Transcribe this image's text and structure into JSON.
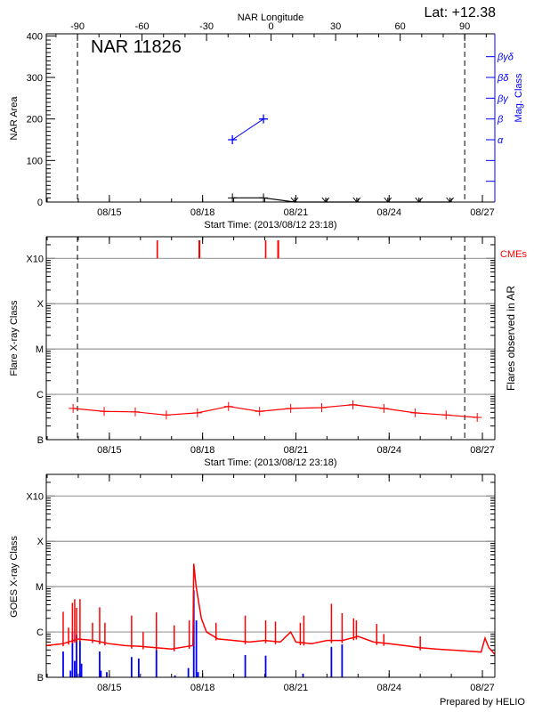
{
  "colors": {
    "area": "#000000",
    "mag_class": "#0000ff",
    "flares": "#ff0000",
    "cmes": "#ff0000",
    "goes_long": "#ff0000",
    "goes_short": "#0000ff",
    "grid": "#999999"
  },
  "footer": "Prepared by HELIO",
  "chart_data": [
    {
      "type": "line",
      "title": "NAR 11826",
      "top_axis_label": "NAR Longitude",
      "latitude_label": "Lat: +12.38",
      "xlabel": "Start Time: (2013/08/12 23:18)",
      "ylabel": "NAR Area",
      "y2label": "Mag. Class",
      "xlim": [
        "2013-08-12 23:18",
        "2013-08-27 09:36"
      ],
      "x_ticks": [
        {
          "label": "08/15",
          "t": "2013-08-15 00:00"
        },
        {
          "label": "08/18",
          "t": "2013-08-18 00:00"
        },
        {
          "label": "08/21",
          "t": "2013-08-21 00:00"
        },
        {
          "label": "08/24",
          "t": "2013-08-24 00:00"
        },
        {
          "label": "08/27",
          "t": "2013-08-27 00:00"
        }
      ],
      "ylim": [
        0,
        405
      ],
      "y_ticks": [
        0,
        100,
        200,
        300,
        400
      ],
      "longitude_ticks": [
        -90,
        -60,
        -30,
        0,
        30,
        60,
        90
      ],
      "longitude_range": [
        -104.5,
        104
      ],
      "limb_longitudes": [
        -90,
        90
      ],
      "mag_class_ticks": [
        "",
        "",
        "α",
        "β",
        "βγ",
        "βδ",
        "βγδ"
      ],
      "area_series": [
        {
          "t": "2013-08-18 23:00",
          "v": 10
        },
        {
          "t": "2013-08-19 23:00",
          "v": 10
        },
        {
          "t": "2013-08-20 23:00",
          "v": 0
        },
        {
          "t": "2013-08-21 23:00",
          "v": 0
        },
        {
          "t": "2013-08-22 23:00",
          "v": 0
        },
        {
          "t": "2013-08-23 23:00",
          "v": 0
        },
        {
          "t": "2013-08-24 23:00",
          "v": 0
        },
        {
          "t": "2013-08-25 23:00",
          "v": 0
        }
      ],
      "mag_class_series": [
        {
          "t": "2013-08-18 23:00",
          "class": "α"
        },
        {
          "t": "2013-08-19 23:00",
          "class": "β"
        }
      ]
    },
    {
      "type": "line",
      "xlabel": "Start Time: (2013/08/12 23:18)",
      "ylabel": "Flare X-ray Class",
      "y2label": "Flares observed in AR",
      "cme_label": "CMEs",
      "xlim": [
        "2013-08-12 23:18",
        "2013-08-27 09:36"
      ],
      "y_scale": "log",
      "ylim": [
        1e-07,
        0.003
      ],
      "y_ticks": [
        {
          "label": "B",
          "v": 1e-07
        },
        {
          "label": "C",
          "v": 1e-06
        },
        {
          "label": "M",
          "v": 1e-05
        },
        {
          "label": "X",
          "v": 0.0001
        },
        {
          "label": "X10",
          "v": 0.001
        }
      ],
      "grid": true,
      "limb_longitudes": [
        -90,
        90
      ],
      "flare_series": [
        {
          "t": "2013-08-13 20:00",
          "v": 4.9e-07
        },
        {
          "t": "2013-08-14 20:00",
          "v": 4.2e-07
        },
        {
          "t": "2013-08-15 20:00",
          "v": 4.1e-07
        },
        {
          "t": "2013-08-16 20:00",
          "v": 3.5e-07
        },
        {
          "t": "2013-08-17 20:00",
          "v": 3.9e-07
        },
        {
          "t": "2013-08-18 20:00",
          "v": 5.4e-07
        },
        {
          "t": "2013-08-19 20:00",
          "v": 4.2e-07
        },
        {
          "t": "2013-08-20 20:00",
          "v": 4.9e-07
        },
        {
          "t": "2013-08-21 20:00",
          "v": 5.1e-07
        },
        {
          "t": "2013-08-22 20:00",
          "v": 5.9e-07
        },
        {
          "t": "2013-08-23 20:00",
          "v": 4.9e-07
        },
        {
          "t": "2013-08-24 20:00",
          "v": 3.9e-07
        },
        {
          "t": "2013-08-25 20:00",
          "v": 3.5e-07
        },
        {
          "t": "2013-08-26 20:00",
          "v": 3.1e-07
        }
      ],
      "cmes": [
        "2013-08-16 13:00",
        "2013-08-17 21:20",
        "2013-08-17 21:40",
        "2013-08-20 00:40",
        "2013-08-20 10:10",
        "2013-08-20 10:30"
      ]
    },
    {
      "type": "line",
      "ylabel": "GOES X-ray Class",
      "xlim": [
        "2013-08-12 23:18",
        "2013-08-27 09:36"
      ],
      "y_scale": "log",
      "ylim": [
        1e-07,
        0.003
      ],
      "y_ticks": [
        {
          "label": "B",
          "v": 1e-07
        },
        {
          "label": "C",
          "v": 1e-06
        },
        {
          "label": "M",
          "v": 1e-05
        },
        {
          "label": "X",
          "v": 0.0001
        },
        {
          "label": "X10",
          "v": 0.001
        }
      ],
      "grid": true,
      "goes_long_baseline": [
        [
          "2013-08-12 23:18",
          5e-07
        ],
        [
          "2013-08-13 12:00",
          5.5e-07
        ],
        [
          "2013-08-14 00:00",
          7e-07
        ],
        [
          "2013-08-14 12:00",
          6.5e-07
        ],
        [
          "2013-08-15 00:00",
          5.5e-07
        ],
        [
          "2013-08-15 12:00",
          5e-07
        ],
        [
          "2013-08-16 00:00",
          4.8e-07
        ],
        [
          "2013-08-16 12:00",
          4.5e-07
        ],
        [
          "2013-08-17 00:00",
          4.2e-07
        ],
        [
          "2013-08-17 12:00",
          4.8e-07
        ],
        [
          "2013-08-17 16:30",
          5e-07
        ],
        [
          "2013-08-17 17:10",
          3.2e-05
        ],
        [
          "2013-08-17 19:00",
          1e-05
        ],
        [
          "2013-08-17 23:00",
          2e-06
        ],
        [
          "2013-08-18 03:00",
          1e-06
        ],
        [
          "2013-08-18 12:00",
          7e-07
        ],
        [
          "2013-08-19 00:00",
          6.5e-07
        ],
        [
          "2013-08-19 12:00",
          6e-07
        ],
        [
          "2013-08-20 00:00",
          6.5e-07
        ],
        [
          "2013-08-20 12:00",
          6e-07
        ],
        [
          "2013-08-20 20:00",
          1e-06
        ],
        [
          "2013-08-21 00:00",
          6e-07
        ],
        [
          "2013-08-21 12:00",
          5.5e-07
        ],
        [
          "2013-08-22 00:00",
          6.5e-07
        ],
        [
          "2013-08-22 12:00",
          6.5e-07
        ],
        [
          "2013-08-23 00:00",
          8e-07
        ],
        [
          "2013-08-23 12:00",
          6e-07
        ],
        [
          "2013-08-24 00:00",
          5.5e-07
        ],
        [
          "2013-08-24 12:00",
          5e-07
        ],
        [
          "2013-08-25 00:00",
          4.5e-07
        ],
        [
          "2013-08-25 12:00",
          4.2e-07
        ],
        [
          "2013-08-26 00:00",
          4e-07
        ],
        [
          "2013-08-26 12:00",
          3.8e-07
        ],
        [
          "2013-08-26 23:00",
          3.6e-07
        ],
        [
          "2013-08-27 02:00",
          7.3e-07
        ],
        [
          "2013-08-27 05:00",
          4.5e-07
        ],
        [
          "2013-08-27 09:36",
          3.2e-07
        ]
      ],
      "goes_long_spikes": [
        [
          "2013-08-13 12:20",
          2.8e-06
        ],
        [
          "2013-08-13 16:30",
          1.25e-06
        ],
        [
          "2013-08-13 19:30",
          4.4e-06
        ],
        [
          "2013-08-13 21:15",
          5.3e-06
        ],
        [
          "2013-08-13 22:40",
          3.4e-06
        ],
        [
          "2013-08-14 01:20",
          5.3e-06
        ],
        [
          "2013-08-14 11:00",
          1.6e-06
        ],
        [
          "2013-08-14 16:30",
          3.5e-06
        ],
        [
          "2013-08-14 20:35",
          1.6e-06
        ],
        [
          "2013-08-15 17:10",
          2.3e-06
        ],
        [
          "2013-08-16 02:05",
          1e-06
        ],
        [
          "2013-08-16 12:20",
          2.7e-06
        ],
        [
          "2013-08-17 02:05",
          1.4e-06
        ],
        [
          "2013-08-17 13:40",
          1.8e-06
        ],
        [
          "2013-08-18 10:20",
          1.6e-06
        ],
        [
          "2013-08-19 08:55",
          2.3e-06
        ],
        [
          "2013-08-20 00:40",
          1.8e-06
        ],
        [
          "2013-08-20 08:15",
          1.7e-06
        ],
        [
          "2013-08-21 03:25",
          1.6e-06
        ],
        [
          "2013-08-21 06:10",
          2.3e-06
        ],
        [
          "2013-08-22 03:25",
          4.2e-06
        ],
        [
          "2013-08-22 11:40",
          2.6e-06
        ],
        [
          "2013-08-22 20:35",
          2e-06
        ],
        [
          "2013-08-22 22:40",
          1.8e-06
        ],
        [
          "2013-08-23 14:25",
          1.5e-06
        ],
        [
          "2013-08-23 19:55",
          9e-07
        ],
        [
          "2013-08-25 00:00",
          8e-07
        ]
      ],
      "goes_short_spikes": [
        [
          "2013-08-13 12:20",
          3.7e-07
        ],
        [
          "2013-08-13 18:00",
          1.4e-07
        ],
        [
          "2013-08-13 19:30",
          1e-06
        ],
        [
          "2013-08-13 21:15",
          2.3e-07
        ],
        [
          "2013-08-13 22:40",
          8.7e-07
        ],
        [
          "2013-08-14 01:20",
          6.4e-07
        ],
        [
          "2013-08-14 02:30",
          2e-07
        ],
        [
          "2013-08-14 16:30",
          3.7e-07
        ],
        [
          "2013-08-14 17:30",
          1.4e-07
        ],
        [
          "2013-08-14 22:00",
          1.3e-07
        ],
        [
          "2013-08-15 17:10",
          2.8e-07
        ],
        [
          "2013-08-15 22:40",
          2.6e-07
        ],
        [
          "2013-08-16 12:20",
          4e-07
        ],
        [
          "2013-08-17 02:40",
          1.1e-07
        ],
        [
          "2013-08-17 13:00",
          1.6e-07
        ],
        [
          "2013-08-17 17:10",
          8.3e-06
        ],
        [
          "2013-08-17 19:10",
          1.8e-06
        ],
        [
          "2013-08-17 20:30",
          1.3e-07
        ],
        [
          "2013-08-19 08:55",
          3.1e-07
        ],
        [
          "2013-08-20 00:40",
          3e-07
        ],
        [
          "2013-08-21 05:30",
          1.2e-07
        ],
        [
          "2013-08-22 03:25",
          4.7e-07
        ],
        [
          "2013-08-22 11:40",
          5.3e-07
        ]
      ],
      "x_ticks": [
        {
          "label": "08/15",
          "t": "2013-08-15 00:00"
        },
        {
          "label": "08/18",
          "t": "2013-08-18 00:00"
        },
        {
          "label": "08/21",
          "t": "2013-08-21 00:00"
        },
        {
          "label": "08/24",
          "t": "2013-08-24 00:00"
        },
        {
          "label": "08/27",
          "t": "2013-08-27 00:00"
        }
      ]
    }
  ]
}
